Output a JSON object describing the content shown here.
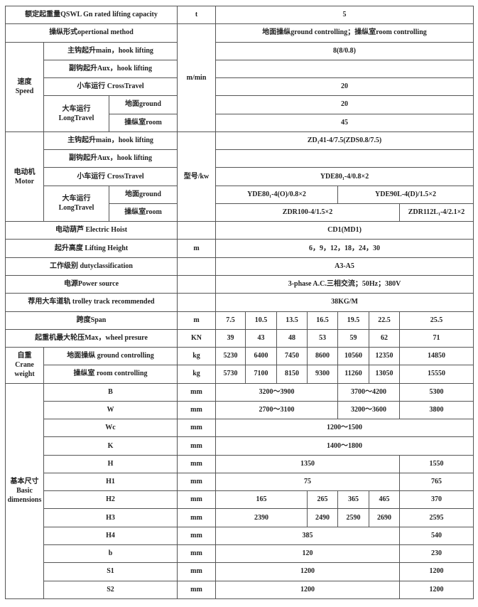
{
  "capacity": {
    "label": "额定起重量QSWL Gn rated lifting capacity",
    "unit": "t",
    "value": "5"
  },
  "operation": {
    "label": "操纵形式opertional method",
    "value": "地面操纵ground controlling；操纵室room controlling"
  },
  "speed": {
    "group": "速度",
    "group_en": "Speed",
    "unit": "m/min",
    "main_hook": {
      "label": "主钩起升main，hook lifting",
      "value": "8(8/0.8)"
    },
    "aux_hook": {
      "label": "副钩起升Aux，hook lifting",
      "value": ""
    },
    "cross_travel": {
      "label": "小车运行 CrossTravel",
      "value": "20"
    },
    "long_travel": {
      "label": "大车运行",
      "label_en": "LongTravel",
      "ground_label": "地面ground",
      "ground_value": "20",
      "room_label": "操纵室room",
      "room_value": "45"
    }
  },
  "motor": {
    "group": "电动机",
    "group_en": "Motor",
    "unit": "型号/kw",
    "main_hook": {
      "label": "主钩起升main，hook lifting",
      "value": "ZD₁41-4/7.5(ZDS0.8/7.5)"
    },
    "aux_hook": {
      "label": "副钩起升Aux，hook lifting",
      "value": ""
    },
    "cross_travel": {
      "label": "小车运行 CrossTravel",
      "value": "YDE80₁-4/0.8×2"
    },
    "long_travel": {
      "label": "大车运行",
      "label_en": "LongTravel",
      "ground_label": "地面ground",
      "ground_values": [
        "YDE80₁-4(O)/0.8×2",
        "YDE90L-4(D)/1.5×2"
      ],
      "room_label": "操纵室room",
      "room_values": [
        "ZDR100-4/1.5×2",
        "ZDR112L₁-4/2.1×2"
      ]
    }
  },
  "hoist": {
    "label": "电动葫芦 Electric Hoist",
    "unit": "",
    "value": "CD1(MD1)"
  },
  "lifting_height": {
    "label": "起升高度 Lifting Height",
    "unit": "m",
    "value": "6，9，12，18，24，30"
  },
  "duty": {
    "label": "工作级别 dutyclassification",
    "unit": "",
    "value": "A3-A5"
  },
  "power": {
    "label": "电源Power source",
    "unit": "",
    "value": "3-phase A.C.三相交流；50Hz；380V"
  },
  "track": {
    "label": "荐用大车道轨 trolley track recommended",
    "unit": "",
    "value": "38KG/M"
  },
  "span": {
    "label": "跨度Span",
    "unit": "m",
    "values": [
      "7.5",
      "10.5",
      "13.5",
      "16.5",
      "19.5",
      "22.5",
      "25.5"
    ]
  },
  "wheel_pressure": {
    "label": "起重机最大轮压Max，wheel presure",
    "unit": "KN",
    "values": [
      "39",
      "43",
      "48",
      "53",
      "59",
      "62",
      "71"
    ]
  },
  "weight": {
    "group": "自重",
    "group_en": "Crane weight",
    "ground": {
      "label": "地面操纵 ground controlling",
      "unit": "kg",
      "values": [
        "5230",
        "6400",
        "7450",
        "8600",
        "10560",
        "12350",
        "14850"
      ]
    },
    "room": {
      "label": "操纵室 room controlling",
      "unit": "kg",
      "values": [
        "5730",
        "7100",
        "8150",
        "9300",
        "11260",
        "13050",
        "15550"
      ]
    }
  },
  "dimensions": {
    "group": "基本尺寸",
    "group_en": "Basic dimensions",
    "unit": "mm",
    "B": {
      "label": "B",
      "values": [
        "3200～3900",
        "3700～4200",
        "5300"
      ]
    },
    "W": {
      "label": "W",
      "values": [
        "2700～3100",
        "3200～3600",
        "3800"
      ]
    },
    "Wc": {
      "label": "Wc",
      "values": [
        "1200～1500"
      ]
    },
    "K": {
      "label": "K",
      "values": [
        "1400～1800"
      ]
    },
    "H": {
      "label": "H",
      "values": [
        "1350",
        "1550"
      ]
    },
    "H1": {
      "label": "H1",
      "values": [
        "75",
        "765"
      ]
    },
    "H2": {
      "label": "H2",
      "values": [
        "165",
        "265",
        "365",
        "465",
        "370"
      ]
    },
    "H3": {
      "label": "H3",
      "values": [
        "2390",
        "2490",
        "2590",
        "2690",
        "2595"
      ]
    },
    "H4": {
      "label": "H4",
      "values": [
        "385",
        "540"
      ]
    },
    "b": {
      "label": "b",
      "values": [
        "120",
        "230"
      ]
    },
    "S1": {
      "label": "S1",
      "values": [
        "1200",
        "1200"
      ]
    },
    "S2": {
      "label": "S2",
      "values": [
        "1200",
        "1200"
      ]
    }
  }
}
